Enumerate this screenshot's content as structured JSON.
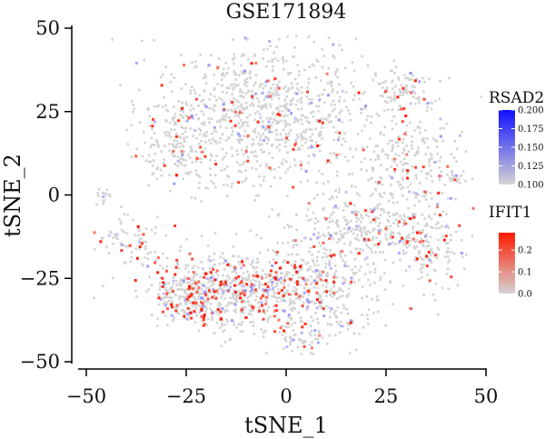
{
  "chart_data": {
    "type": "scatter",
    "title": "GSE171894",
    "xlabel": "tSNE_1",
    "ylabel": "tSNE_2",
    "xlim": [
      -52,
      50
    ],
    "ylim": [
      -52,
      50
    ],
    "x_ticks": [
      -50,
      -25,
      0,
      25,
      50
    ],
    "x_tick_labels": [
      "−50",
      "−25",
      "0",
      "25",
      "50"
    ],
    "y_ticks": [
      -50,
      -25,
      0,
      25,
      50
    ],
    "y_tick_labels": [
      "−50",
      "−25",
      "0",
      "25",
      "50"
    ],
    "grid": false,
    "legend": [
      {
        "title": "RSAD2",
        "range": [
          0.1,
          0.2
        ],
        "ticks": [
          0.2,
          0.175,
          0.15,
          0.125,
          0.1
        ],
        "tick_labels": [
          "0.200",
          "0.175",
          "0.150",
          "0.125",
          "0.100"
        ],
        "color_low": "#d4d4d4",
        "color_high": "#1010ff"
      },
      {
        "title": "IFIT1",
        "range": [
          0.0,
          0.28
        ],
        "ticks": [
          0.2,
          0.1,
          0.0
        ],
        "tick_labels": [
          "0.2",
          "0.1",
          "0.0"
        ],
        "color_low": "#d4d4d4",
        "color_high": "#ff1a00"
      }
    ],
    "legend_placement": "right",
    "base_point_color": "#d3d3d3",
    "clusters": [
      {
        "cx": -5,
        "cy": 24,
        "sx": 14,
        "sy": 11,
        "n": 900,
        "ifit1": 0.12,
        "rsad2": 0.14
      },
      {
        "cx": 30,
        "cy": 10,
        "sx": 7,
        "sy": 8,
        "n": 220,
        "ifit1": 0.14,
        "rsad2": 0.14
      },
      {
        "cx": 30,
        "cy": 31,
        "sx": 4,
        "sy": 3,
        "n": 90,
        "ifit1": 0.12,
        "rsad2": 0.2
      },
      {
        "cx": -27,
        "cy": 16,
        "sx": 5,
        "sy": 7,
        "n": 140,
        "ifit1": 0.1,
        "rsad2": 0.12
      },
      {
        "cx": 42,
        "cy": 5,
        "sx": 2,
        "sy": 1,
        "n": 25,
        "ifit1": 0.05,
        "rsad2": 0.15
      },
      {
        "cx": -46,
        "cy": 0,
        "sx": 1,
        "sy": 1,
        "n": 15,
        "ifit1": 0.05,
        "rsad2": 0.1
      },
      {
        "cx": -38,
        "cy": -13,
        "sx": 6,
        "sy": 4,
        "n": 80,
        "ifit1": 0.3,
        "rsad2": 0.15
      },
      {
        "cx": -12,
        "cy": -29,
        "sx": 11,
        "sy": 6,
        "n": 700,
        "ifit1": 0.45,
        "rsad2": 0.22
      },
      {
        "cx": -26,
        "cy": -30,
        "sx": 4,
        "sy": 4,
        "n": 120,
        "ifit1": 0.3,
        "rsad2": 0.2
      },
      {
        "cx": 10,
        "cy": -28,
        "sx": 8,
        "sy": 8,
        "n": 300,
        "ifit1": 0.2,
        "rsad2": 0.28
      },
      {
        "cx": 20,
        "cy": -10,
        "sx": 9,
        "sy": 6,
        "n": 320,
        "ifit1": 0.15,
        "rsad2": 0.2
      },
      {
        "cx": 36,
        "cy": -16,
        "sx": 4,
        "sy": 6,
        "n": 120,
        "ifit1": 0.35,
        "rsad2": 0.15
      },
      {
        "cx": 3,
        "cy": -43,
        "sx": 3,
        "sy": 2,
        "n": 40,
        "ifit1": 0.2,
        "rsad2": 0.3
      }
    ]
  }
}
